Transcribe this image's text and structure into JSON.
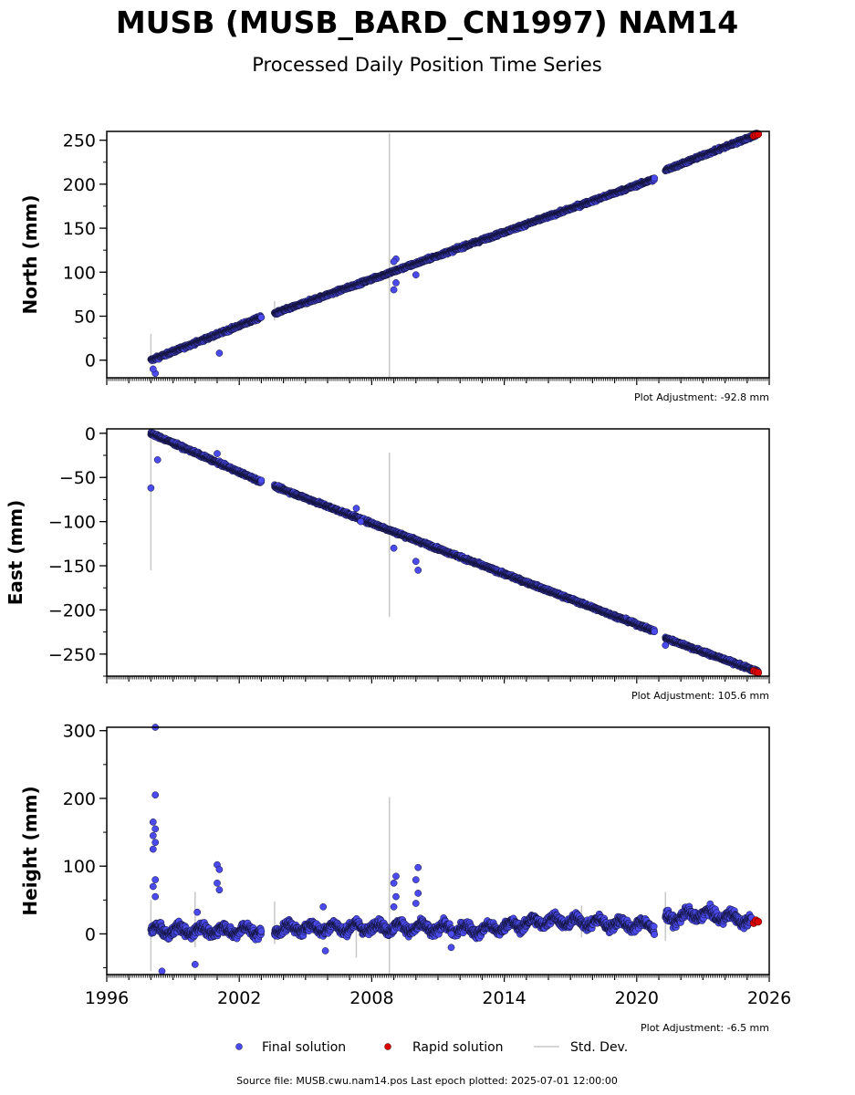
{
  "title": "MUSB (MUSB_BARD_CN1997) NAM14",
  "subtitle": "Processed Daily Position Time Series",
  "source": "Source file: MUSB.cwu.nam14.pos  Last epoch plotted: 2025-07-01 12:00:00",
  "legend": {
    "final": "Final solution",
    "rapid": "Rapid solution",
    "stddev": "Std. Dev."
  },
  "colors": {
    "final": "#4a4aee",
    "rapid": "#dd0000",
    "stddev": "#c8c8c8",
    "edge": "#111133"
  },
  "chart_data": [
    {
      "type": "scatter",
      "ylabel": "North (mm)",
      "adjustment": "Plot Adjustment: -92.8 mm",
      "xlim": [
        1996,
        2026
      ],
      "ylim": [
        -20,
        260
      ],
      "yticks": [
        0,
        50,
        100,
        150,
        200,
        250
      ],
      "ytick_labels": [
        "0",
        "50",
        "100",
        "150",
        "200",
        "250"
      ],
      "segments": [
        [
          1998.0,
          0
        ],
        [
          2003.0,
          49
        ],
        [
          2003.6,
          53
        ],
        [
          2020.8,
          206
        ],
        [
          2021.3,
          216
        ],
        [
          2025.5,
          257
        ]
      ],
      "outliers": [
        [
          1998.2,
          -15
        ],
        [
          1998.1,
          -10
        ],
        [
          2001.1,
          8
        ],
        [
          2009.0,
          80
        ],
        [
          2009.1,
          88
        ],
        [
          2010.0,
          97
        ],
        [
          2009.1,
          115
        ],
        [
          2009.0,
          112
        ]
      ],
      "stddev_bars": [
        [
          1998.0,
          -5,
          30
        ],
        [
          2003.6,
          45,
          67
        ],
        [
          2008.8,
          -20,
          258
        ]
      ],
      "rapid": [
        [
          2025.3,
          255
        ],
        [
          2025.4,
          256
        ],
        [
          2025.5,
          257
        ]
      ]
    },
    {
      "type": "scatter",
      "ylabel": "East (mm)",
      "adjustment": "Plot Adjustment: 105.6 mm",
      "xlim": [
        1996,
        2026
      ],
      "ylim": [
        -275,
        5
      ],
      "yticks": [
        0,
        -50,
        -100,
        -150,
        -200,
        -250
      ],
      "ytick_labels": [
        "0",
        "−50",
        "−100",
        "−150",
        "−200",
        "−250"
      ],
      "segments": [
        [
          1998.0,
          0
        ],
        [
          2003.0,
          -55
        ],
        [
          2003.6,
          -60
        ],
        [
          2020.8,
          -224
        ],
        [
          2021.3,
          -232
        ],
        [
          2025.5,
          -270
        ]
      ],
      "outliers": [
        [
          1998.0,
          -62
        ],
        [
          2001.0,
          -23
        ],
        [
          2007.3,
          -85
        ],
        [
          2007.5,
          -100
        ],
        [
          2010.0,
          -145
        ],
        [
          2010.1,
          -155
        ],
        [
          2009.0,
          -130
        ],
        [
          2021.3,
          -240
        ],
        [
          1998.3,
          -30
        ]
      ],
      "stddev_bars": [
        [
          1998.0,
          -155,
          0
        ],
        [
          2008.8,
          -208,
          -22
        ]
      ],
      "rapid": [
        [
          2025.3,
          -269
        ],
        [
          2025.4,
          -270
        ],
        [
          2025.5,
          -271
        ]
      ]
    },
    {
      "type": "scatter",
      "ylabel": "Height (mm)",
      "adjustment": "Plot Adjustment: -6.5 mm",
      "xlim": [
        1996,
        2026
      ],
      "ylim": [
        -60,
        305
      ],
      "yticks": [
        0,
        100,
        200,
        300
      ],
      "ytick_labels": [
        "0",
        "100",
        "200",
        "300"
      ],
      "xticks": [
        1996,
        2002,
        2008,
        2014,
        2020,
        2026
      ],
      "xtick_labels": [
        "1996",
        "2002",
        "2008",
        "2014",
        "2020",
        "2026"
      ],
      "baseline": [
        [
          1998.0,
          5
        ],
        [
          2003.0,
          5
        ],
        [
          2003.6,
          8
        ],
        [
          2009.0,
          10
        ],
        [
          2013.0,
          6
        ],
        [
          2016.0,
          20
        ],
        [
          2020.8,
          12
        ],
        [
          2021.3,
          22
        ],
        [
          2023.0,
          30
        ],
        [
          2025.5,
          18
        ]
      ],
      "outliers": [
        [
          1998.2,
          305
        ],
        [
          1998.2,
          205
        ],
        [
          1998.1,
          165
        ],
        [
          1998.2,
          155
        ],
        [
          1998.1,
          145
        ],
        [
          1998.2,
          135
        ],
        [
          1998.1,
          125
        ],
        [
          1998.2,
          80
        ],
        [
          1998.1,
          70
        ],
        [
          1998.2,
          55
        ],
        [
          2001.0,
          102
        ],
        [
          2001.1,
          95
        ],
        [
          2001.0,
          75
        ],
        [
          2001.1,
          65
        ],
        [
          2009.1,
          85
        ],
        [
          2009.0,
          75
        ],
        [
          2009.1,
          55
        ],
        [
          2009.0,
          40
        ],
        [
          2010.1,
          98
        ],
        [
          2010.0,
          80
        ],
        [
          2010.1,
          60
        ],
        [
          2010.0,
          45
        ],
        [
          2000.0,
          -45
        ],
        [
          2000.1,
          32
        ],
        [
          2005.8,
          40
        ],
        [
          2005.9,
          -25
        ],
        [
          1998.5,
          -55
        ],
        [
          2011.6,
          0
        ],
        [
          2011.6,
          -20
        ]
      ],
      "stddev_bars": [
        [
          1998.0,
          -55,
          50
        ],
        [
          2000.0,
          -20,
          62
        ],
        [
          2003.6,
          -15,
          48
        ],
        [
          2007.3,
          -35,
          25
        ],
        [
          2008.8,
          -60,
          202
        ],
        [
          2021.3,
          -10,
          62
        ],
        [
          2017.5,
          -5,
          42
        ]
      ],
      "rapid": [
        [
          2025.3,
          16
        ],
        [
          2025.4,
          20
        ],
        [
          2025.5,
          18
        ]
      ]
    }
  ]
}
